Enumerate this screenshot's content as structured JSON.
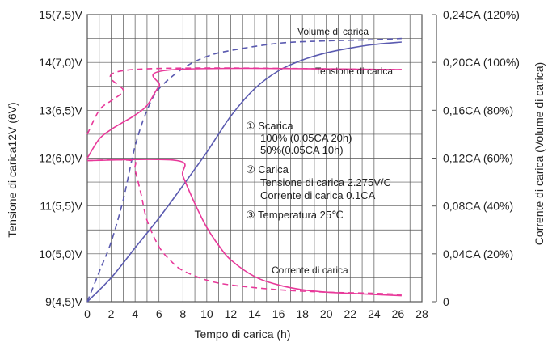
{
  "chart_data": {
    "type": "line",
    "xlabel": "Tempo di carica (h)",
    "ylabel_left": "Tensione di carica12V (6V)",
    "ylabel_right": "Corrente di carica (Volume di carica)",
    "xlim": [
      0,
      28
    ],
    "ylim_left": [
      9,
      15
    ],
    "ylim_right": [
      0,
      0.24
    ],
    "x_ticks": [
      "0",
      "2",
      "4",
      "6",
      "8",
      "10",
      "12",
      "14",
      "16",
      "18",
      "20",
      "22",
      "24",
      "26",
      "28"
    ],
    "left_ticks": [
      {
        "value": 15,
        "label": "15(7,5)V"
      },
      {
        "value": 14,
        "label": "14(7,0)V"
      },
      {
        "value": 13,
        "label": "13(6,5)V"
      },
      {
        "value": 12,
        "label": "12(6,0)V"
      },
      {
        "value": 11,
        "label": "11(5,5)V"
      },
      {
        "value": 10,
        "label": "10(5,0)V"
      },
      {
        "value": 9,
        "label": "9(4,5)V"
      }
    ],
    "right_ticks": [
      {
        "value": 0.24,
        "label": "0,24CA (120%)"
      },
      {
        "value": 0.2,
        "label": "0,20CA (100%)"
      },
      {
        "value": 0.16,
        "label": "0,16CA (80%)"
      },
      {
        "value": 0.12,
        "label": "0,12CA (60%)"
      },
      {
        "value": 0.08,
        "label": "0,08CA (40%)"
      },
      {
        "value": 0.04,
        "label": "0,04CA (20%)"
      },
      {
        "value": 0,
        "label": "0"
      }
    ],
    "grid": true,
    "series": [
      {
        "name": "Volume di carica",
        "axis": "right",
        "color": "#5a5ab0",
        "dash": false,
        "points": [
          [
            0,
            0
          ],
          [
            2,
            0.02
          ],
          [
            4,
            0.045
          ],
          [
            6,
            0.07
          ],
          [
            8,
            0.097
          ],
          [
            10,
            0.125
          ],
          [
            12,
            0.155
          ],
          [
            14,
            0.178
          ],
          [
            16,
            0.193
          ],
          [
            18,
            0.202
          ],
          [
            20,
            0.208
          ],
          [
            22,
            0.212
          ],
          [
            24,
            0.215
          ],
          [
            26.3,
            0.217
          ]
        ]
      },
      {
        "name": "",
        "axis": "right",
        "color": "#5a5ab0",
        "dash": true,
        "points": [
          [
            0,
            0
          ],
          [
            1,
            0.025
          ],
          [
            2,
            0.05
          ],
          [
            3,
            0.085
          ],
          [
            4,
            0.13
          ],
          [
            5,
            0.16
          ],
          [
            6,
            0.178
          ],
          [
            8,
            0.195
          ],
          [
            10,
            0.205
          ],
          [
            12,
            0.21
          ],
          [
            16,
            0.216
          ],
          [
            20,
            0.218
          ],
          [
            24,
            0.219
          ],
          [
            26.3,
            0.22
          ]
        ]
      },
      {
        "name": "Tensione di carica",
        "axis": "left",
        "color": "#e8399a",
        "dash": false,
        "points": [
          [
            0,
            12
          ],
          [
            1,
            12.4
          ],
          [
            2,
            12.6
          ],
          [
            3,
            12.75
          ],
          [
            4,
            12.9
          ],
          [
            5,
            13.1
          ],
          [
            6,
            13.5
          ],
          [
            7.3,
            13.85
          ],
          [
            26.3,
            13.85
          ]
        ]
      },
      {
        "name": "",
        "axis": "left",
        "color": "#e8399a",
        "dash": true,
        "points": [
          [
            0,
            12.5
          ],
          [
            1,
            13.0
          ],
          [
            2,
            13.2
          ],
          [
            3,
            13.4
          ],
          [
            3.8,
            13.85
          ],
          [
            26.3,
            13.85
          ]
        ]
      },
      {
        "name": "Corrente di carica",
        "axis": "right",
        "color": "#e8399a",
        "dash": false,
        "points": [
          [
            0,
            0.118
          ],
          [
            7.5,
            0.118
          ],
          [
            8,
            0.105
          ],
          [
            9,
            0.082
          ],
          [
            10,
            0.062
          ],
          [
            11,
            0.047
          ],
          [
            12,
            0.035
          ],
          [
            14,
            0.021
          ],
          [
            16,
            0.014
          ],
          [
            18,
            0.01
          ],
          [
            20,
            0.008
          ],
          [
            22,
            0.007
          ],
          [
            24,
            0.006
          ],
          [
            26.3,
            0.005
          ]
        ]
      },
      {
        "name": "",
        "axis": "right",
        "color": "#e8399a",
        "dash": true,
        "points": [
          [
            0,
            0.118
          ],
          [
            3.7,
            0.118
          ],
          [
            4,
            0.11
          ],
          [
            4.5,
            0.09
          ],
          [
            5,
            0.068
          ],
          [
            6,
            0.046
          ],
          [
            7,
            0.034
          ],
          [
            8,
            0.026
          ],
          [
            10,
            0.018
          ],
          [
            12,
            0.014
          ],
          [
            16,
            0.01
          ],
          [
            20,
            0.008
          ],
          [
            24,
            0.007
          ],
          [
            26.3,
            0.006
          ]
        ]
      }
    ],
    "labels": {
      "volume": "Volume di carica",
      "tensione": "Tensione di carica",
      "corrente": "Corrente di carica"
    },
    "annotations": [
      "① Scarica",
      "100% (0.05CA    20h)",
      "50%(0.05CA    10h)",
      "② Carica",
      "Tensione di carica 2.275V/C",
      "Corrente di carica 0.1CA",
      "③ Temperatura 25℃"
    ]
  }
}
